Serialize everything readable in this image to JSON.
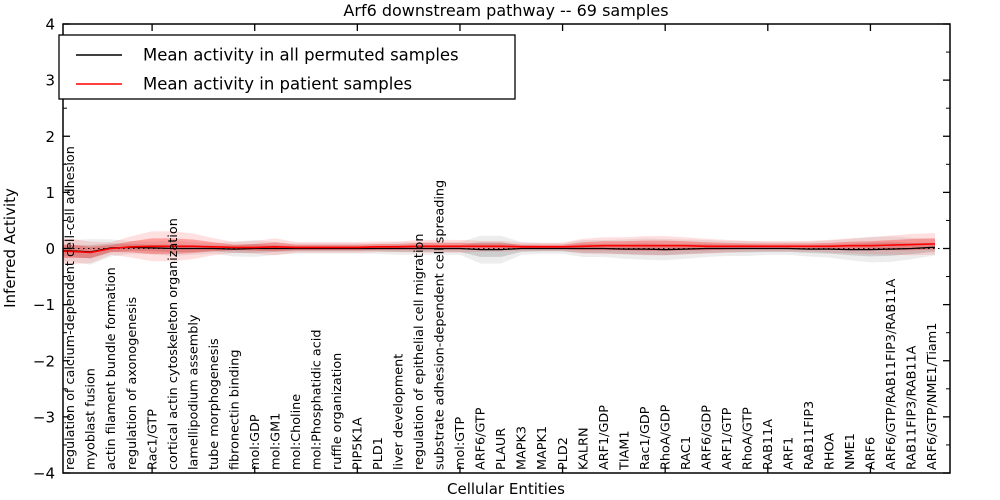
{
  "title": "Arf6 downstream pathway -- 69 samples",
  "legend": {
    "items": [
      {
        "label": "Mean activity in all permuted samples",
        "color": "#000000"
      },
      {
        "label": "Mean activity in patient samples",
        "color": "#ff0000"
      }
    ]
  },
  "chart_data": {
    "type": "line",
    "title": "Arf6 downstream pathway -- 69 samples",
    "xlabel": "Cellular Entities",
    "ylabel": "Inferred Activity",
    "ylim": [
      -4,
      4
    ],
    "yticks": [
      -4,
      -3,
      -2,
      -1,
      0,
      1,
      2,
      3,
      4
    ],
    "ytick_minor_step": 0.5,
    "xtick_indices": [
      4,
      9,
      14,
      19,
      24,
      29,
      34,
      39
    ],
    "grid": false,
    "legend_position": "upper left",
    "zero_line": {
      "value": 0,
      "style": "dotted",
      "color": "#000000"
    },
    "categories": [
      "regulation of calcium-dependent cell-cell adhesion",
      "myoblast fusion",
      "actin filament bundle formation",
      "regulation of axonogenesis",
      "Rac1/GTP",
      "cortical actin cytoskeleton organization",
      "lamellipodium assembly",
      "tube morphogenesis",
      "fibronectin binding",
      "mol:GDP",
      "mol:GM1",
      "mol:Choline",
      "mol:Phosphatidic acid",
      "ruffle organization",
      "PIP5K1A",
      "PLD1",
      "liver development",
      "regulation of epithelial cell migration",
      "substrate adhesion-dependent cell spreading",
      "mol:GTP",
      "ARF6/GTP",
      "PLAUR",
      "MAPK3",
      "MAPK1",
      "PLD2",
      "KALRN",
      "ARF1/GDP",
      "TIAM1",
      "Rac1/GDP",
      "RhoA/GDP",
      "RAC1",
      "ARF6/GDP",
      "ARF1/GTP",
      "RhoA/GTP",
      "RAB11A",
      "ARF1",
      "RAB11FIP3",
      "RHOA",
      "NME1",
      "ARF6",
      "ARF6/GTP/RAB11FIP3/RAB11A",
      "RAB11FIP3/RAB11A",
      "ARF6/GTP/NME1/Tiam1"
    ],
    "series": [
      {
        "name": "Mean activity in all permuted samples",
        "color": "#000000",
        "band_color": "#000000",
        "values": [
          -0.04,
          -0.06,
          0.01,
          0.02,
          0.01,
          0.0,
          0.0,
          0.0,
          -0.01,
          0.0,
          0.0,
          0.0,
          0.0,
          0.0,
          0.0,
          0.0,
          0.0,
          0.0,
          0.0,
          0.0,
          -0.02,
          -0.02,
          0.0,
          0.0,
          0.0,
          0.0,
          0.0,
          -0.01,
          -0.01,
          -0.02,
          -0.01,
          0.0,
          0.0,
          0.0,
          0.0,
          0.0,
          -0.01,
          -0.01,
          -0.02,
          -0.02,
          -0.01,
          0.0,
          0.02
        ],
        "std": [
          0.1,
          0.12,
          0.08,
          0.06,
          0.06,
          0.07,
          0.06,
          0.05,
          0.07,
          0.08,
          0.06,
          0.05,
          0.05,
          0.05,
          0.05,
          0.05,
          0.06,
          0.06,
          0.06,
          0.06,
          0.13,
          0.13,
          0.06,
          0.05,
          0.05,
          0.08,
          0.08,
          0.09,
          0.1,
          0.1,
          0.09,
          0.08,
          0.07,
          0.07,
          0.06,
          0.06,
          0.07,
          0.08,
          0.1,
          0.12,
          0.12,
          0.1,
          0.08
        ]
      },
      {
        "name": "Mean activity in patient samples",
        "color": "#ff0000",
        "band_color": "#ff0000",
        "values": [
          -0.05,
          -0.07,
          0.0,
          0.03,
          0.04,
          0.04,
          0.04,
          0.03,
          0.02,
          0.02,
          0.03,
          0.02,
          0.02,
          0.02,
          0.02,
          0.03,
          0.03,
          0.04,
          0.04,
          0.04,
          0.04,
          0.04,
          0.03,
          0.03,
          0.03,
          0.04,
          0.05,
          0.05,
          0.05,
          0.05,
          0.05,
          0.04,
          0.04,
          0.04,
          0.04,
          0.04,
          0.04,
          0.04,
          0.05,
          0.05,
          0.06,
          0.07,
          0.08
        ],
        "std": [
          0.12,
          0.1,
          0.06,
          0.1,
          0.14,
          0.14,
          0.12,
          0.08,
          0.05,
          0.06,
          0.08,
          0.05,
          0.05,
          0.05,
          0.05,
          0.05,
          0.05,
          0.06,
          0.06,
          0.06,
          0.05,
          0.05,
          0.04,
          0.04,
          0.04,
          0.07,
          0.08,
          0.08,
          0.09,
          0.09,
          0.08,
          0.07,
          0.06,
          0.05,
          0.05,
          0.05,
          0.05,
          0.06,
          0.07,
          0.08,
          0.09,
          0.1,
          0.1
        ]
      }
    ]
  }
}
